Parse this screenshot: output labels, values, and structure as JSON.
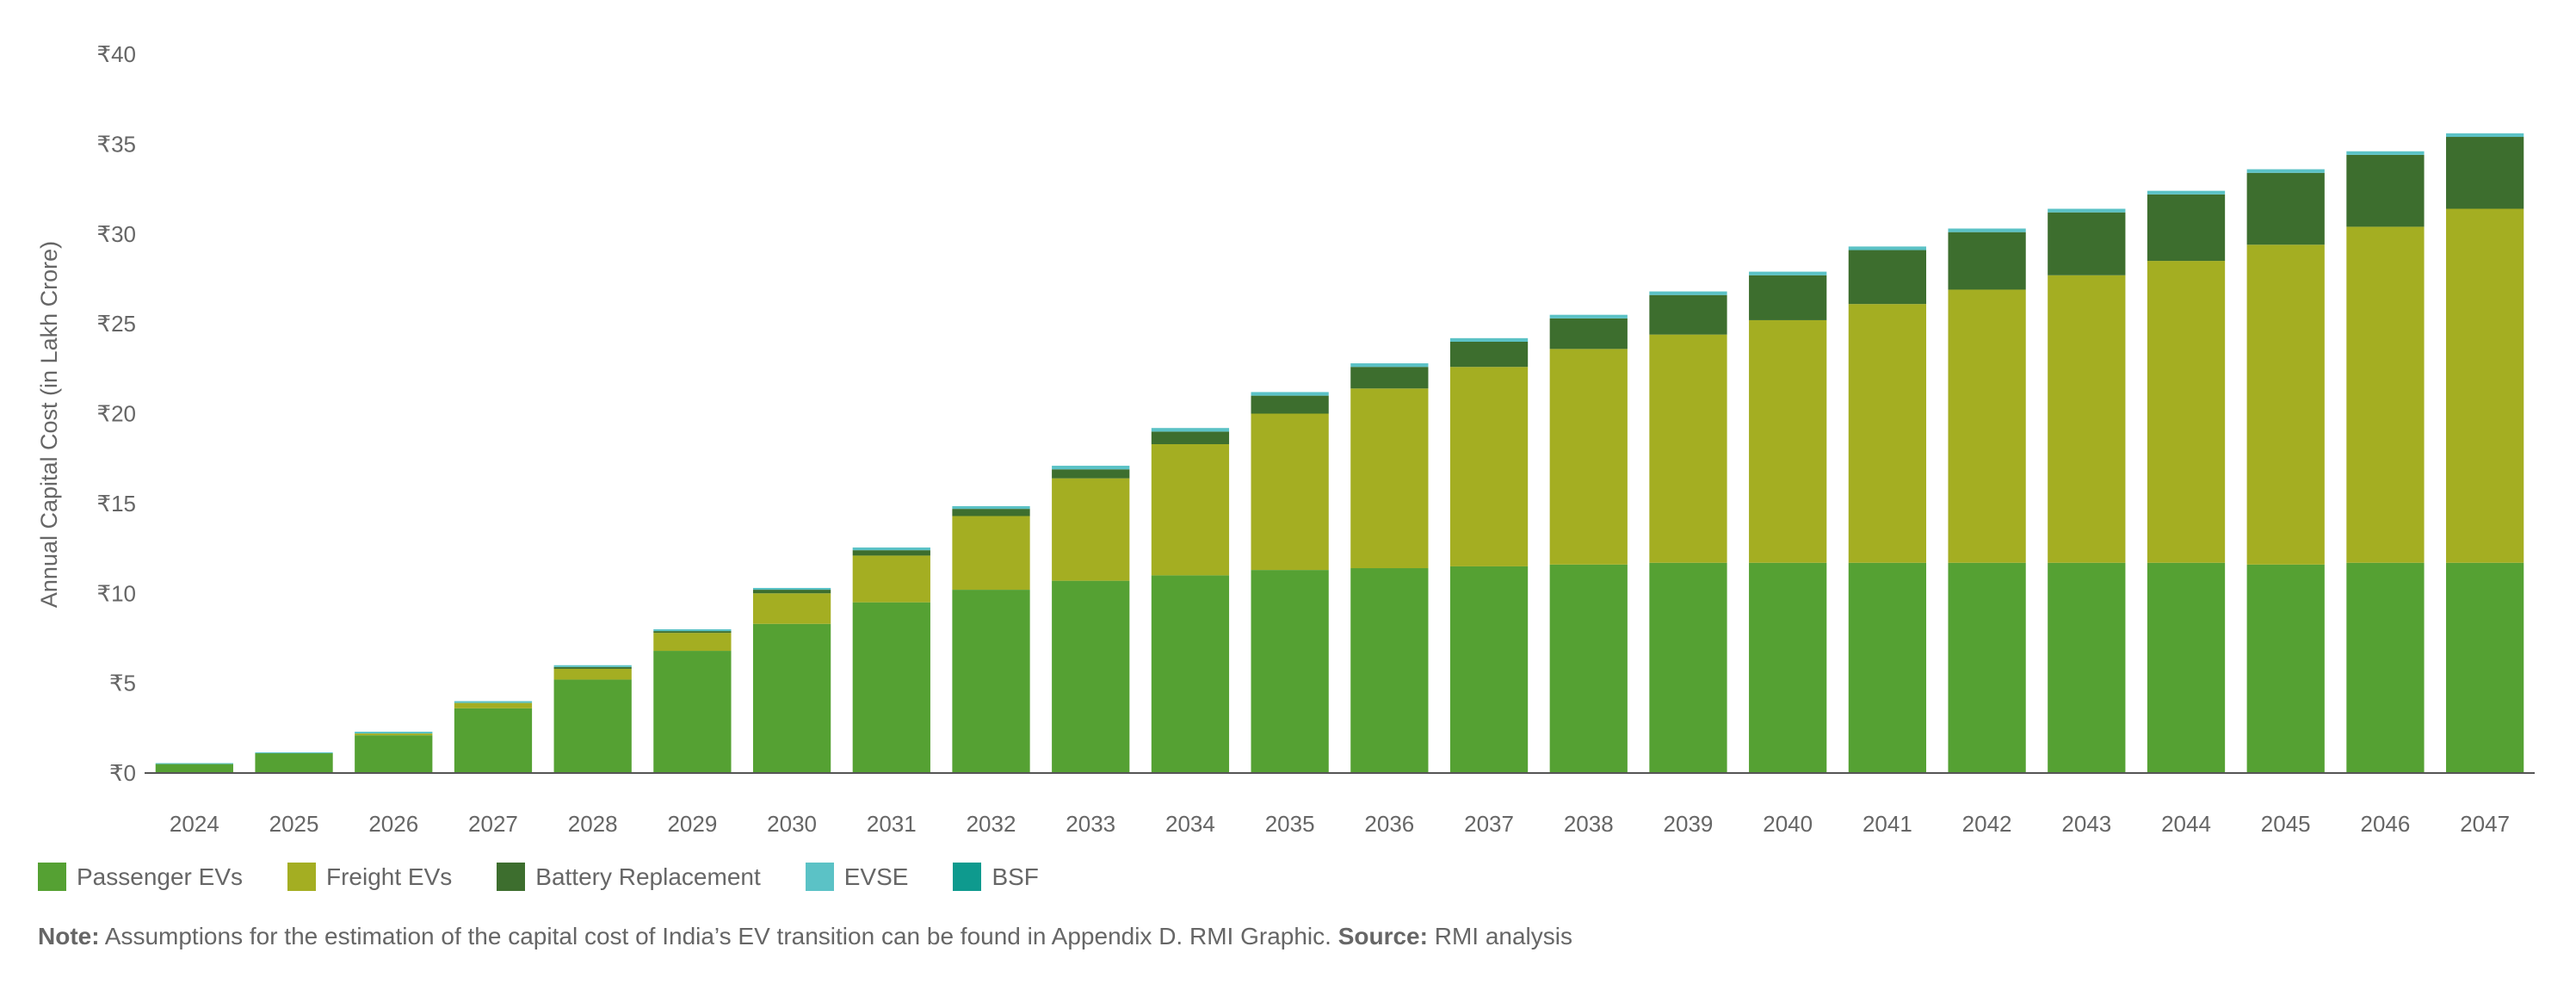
{
  "chart_data": {
    "type": "bar",
    "stacked": true,
    "ylabel": "Annual Capital Cost (in Lakh Crore)",
    "xlabel": "",
    "ylim": [
      0,
      40
    ],
    "yticks": [
      "₹0",
      "₹5",
      "₹10",
      "₹15",
      "₹20",
      "₹25",
      "₹30",
      "₹35",
      "₹40"
    ],
    "ytick_values": [
      0,
      5,
      10,
      15,
      20,
      25,
      30,
      35,
      40
    ],
    "grid": false,
    "legend_placement": "bottom-left",
    "categories": [
      "2024",
      "2025",
      "2026",
      "2027",
      "2028",
      "2029",
      "2030",
      "2031",
      "2032",
      "2033",
      "2034",
      "2035",
      "2036",
      "2037",
      "2038",
      "2039",
      "2040",
      "2041",
      "2042",
      "2043",
      "2044",
      "2045",
      "2046",
      "2047"
    ],
    "series": [
      {
        "name": "Passenger EVs",
        "color": "#55a133",
        "values": [
          0.5,
          1.1,
          2.1,
          3.6,
          5.2,
          6.8,
          8.3,
          9.5,
          10.2,
          10.7,
          11.0,
          11.3,
          11.4,
          11.5,
          11.6,
          11.7,
          11.7,
          11.7,
          11.7,
          11.7,
          11.7,
          11.6,
          11.7,
          11.7
        ]
      },
      {
        "name": "Freight EVs",
        "color": "#a4ae22",
        "values": [
          0.0,
          0.0,
          0.1,
          0.3,
          0.6,
          1.0,
          1.7,
          2.6,
          4.1,
          5.7,
          7.3,
          8.7,
          10.0,
          11.1,
          12.0,
          12.7,
          13.5,
          14.4,
          15.2,
          16.0,
          16.8,
          17.8,
          18.7,
          19.7
        ]
      },
      {
        "name": "Battery Replacement",
        "color": "#3d6e2e",
        "values": [
          0.0,
          0.0,
          0.0,
          0.0,
          0.1,
          0.1,
          0.2,
          0.3,
          0.4,
          0.5,
          0.7,
          1.0,
          1.2,
          1.4,
          1.7,
          2.2,
          2.5,
          3.0,
          3.2,
          3.5,
          3.7,
          4.0,
          4.0,
          4.0
        ]
      },
      {
        "name": "EVSE",
        "color": "#5bc2c6",
        "values": [
          0.05,
          0.05,
          0.1,
          0.1,
          0.1,
          0.1,
          0.1,
          0.15,
          0.15,
          0.2,
          0.2,
          0.2,
          0.2,
          0.2,
          0.2,
          0.2,
          0.2,
          0.2,
          0.2,
          0.2,
          0.2,
          0.2,
          0.2,
          0.2
        ]
      },
      {
        "name": "BSF",
        "color": "#0e9a8e",
        "values": [
          0.0,
          0.0,
          0.0,
          0.0,
          0.0,
          0.0,
          0.0,
          0.0,
          0.0,
          0.0,
          0.0,
          0.0,
          0.0,
          0.0,
          0.0,
          0.0,
          0.0,
          0.0,
          0.0,
          0.0,
          0.0,
          0.0,
          0.0,
          0.0
        ]
      }
    ]
  },
  "note": {
    "note_label": "Note:",
    "note_text": " Assumptions for the estimation of the capital cost of India’s EV transition can be found in Appendix D. RMI Graphic. ",
    "source_label": "Source:",
    "source_text": " RMI analysis"
  }
}
